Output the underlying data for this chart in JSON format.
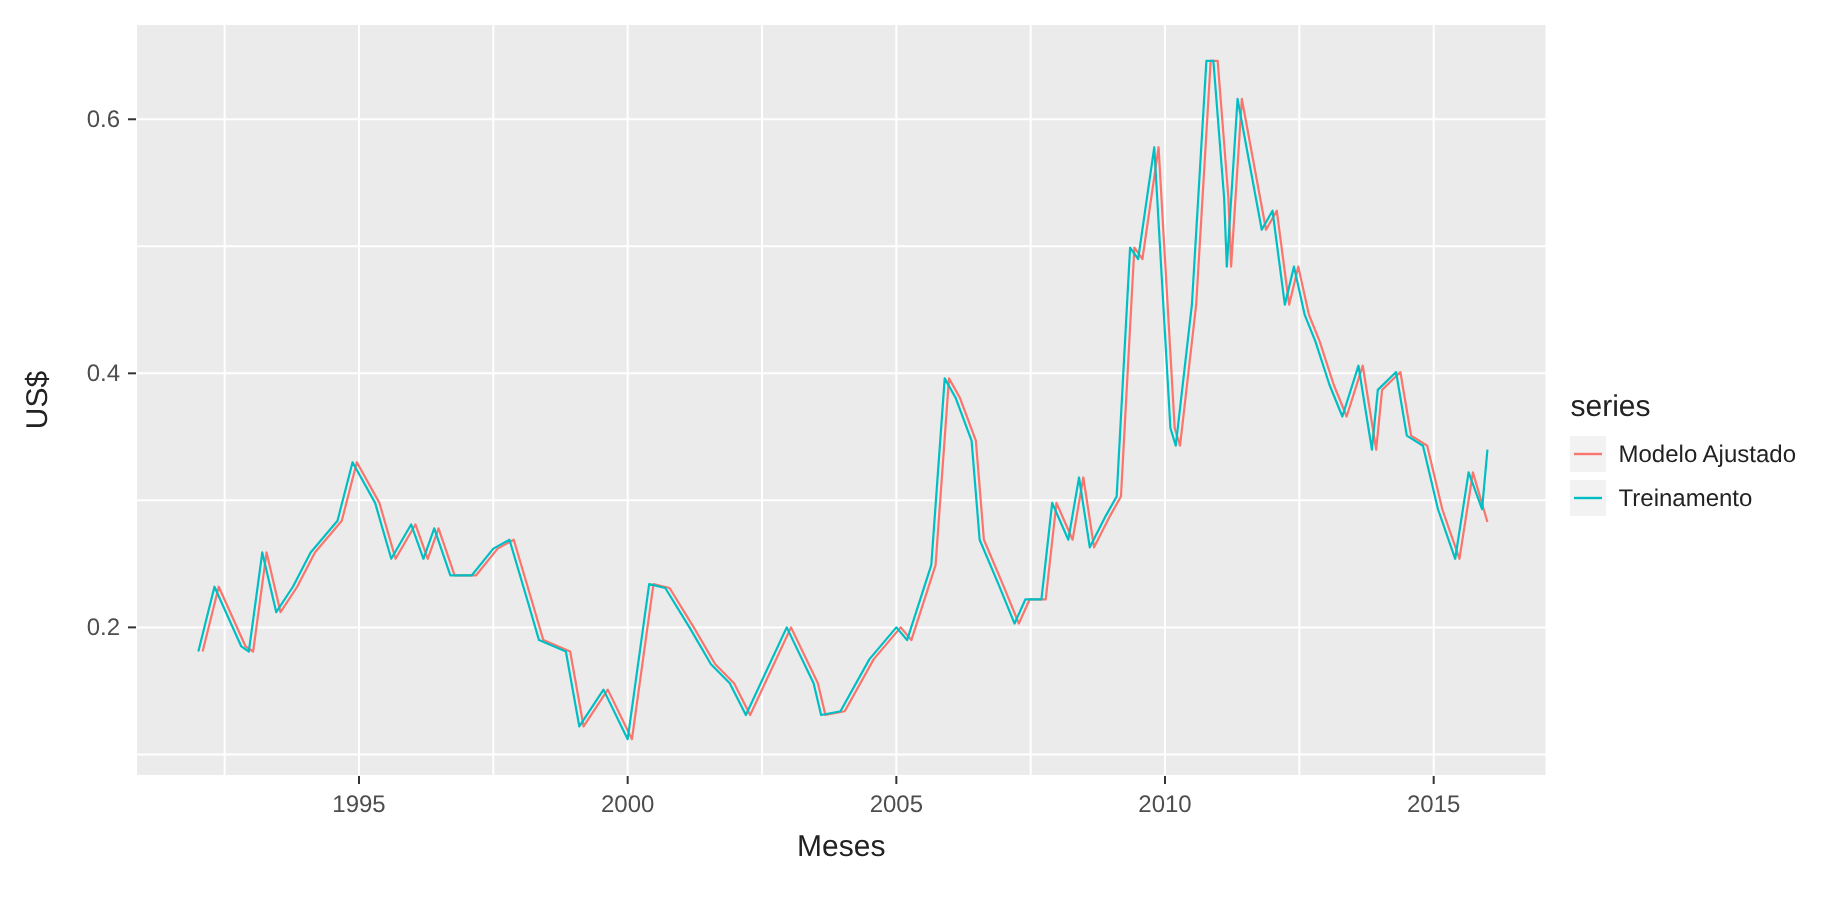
{
  "chart_data": {
    "type": "line",
    "xlabel": "Meses",
    "ylabel": "US$",
    "legend_title": "series",
    "legend": "right",
    "grid": true,
    "xlim": [
      1990.85,
      2017.1
    ],
    "xticks": [
      {
        "value": 1992.5,
        "label": null
      },
      1995,
      {
        "value": 1997.5,
        "label": null
      },
      2000,
      {
        "value": 2002.5,
        "label": null
      },
      2005,
      {
        "value": 2007.5,
        "label": null
      },
      2010,
      {
        "value": 2012.5,
        "label": null
      },
      2015
    ],
    "ylim": [
      0.083,
      0.675
    ],
    "yticks": [
      {
        "value": 0.1,
        "label": null
      },
      0.2,
      {
        "value": 0.3,
        "label": null
      },
      0.4,
      {
        "value": 0.5,
        "label": null
      },
      0.6
    ],
    "series": [
      {
        "name": "Modelo Ajustado",
        "color": "#f8766d",
        "x": [
          1992.09,
          1992.39,
          1992.89,
          1993.03,
          1993.28,
          1993.54,
          1993.85,
          1994.18,
          1994.68,
          1994.96,
          1995.38,
          1995.68,
          1996.05,
          1996.28,
          1996.48,
          1996.78,
          1997.18,
          1997.58,
          1997.88,
          1998.23,
          1998.43,
          1998.93,
          1999.18,
          1999.63,
          2000.08,
          2000.48,
          2000.78,
          2001.23,
          2001.63,
          2001.98,
          2002.28,
          2003.04,
          2003.54,
          2003.68,
          2004.04,
          2004.58,
          2005.08,
          2005.28,
          2005.73,
          2005.98,
          2006.18,
          2006.48,
          2006.63,
          2006.98,
          2007.28,
          2007.48,
          2007.78,
          2007.98,
          2008.28,
          2008.48,
          2008.68,
          2008.98,
          2009.18,
          2009.43,
          2009.58,
          2009.88,
          2010.18,
          2010.28,
          2010.58,
          2010.85,
          2010.98,
          2011.18,
          2011.23,
          2011.43,
          2011.88,
          2012.08,
          2012.31,
          2012.48,
          2012.68,
          2012.88,
          2013.14,
          2013.38,
          2013.68,
          2013.93,
          2014.04,
          2014.38,
          2014.58,
          2014.88,
          2015.16,
          2015.48,
          2015.73,
          2016.0
        ],
        "values": [
          0.181,
          0.232,
          0.185,
          0.181,
          0.259,
          0.212,
          0.232,
          0.259,
          0.284,
          0.33,
          0.298,
          0.254,
          0.281,
          0.254,
          0.278,
          0.241,
          0.241,
          0.262,
          0.269,
          0.219,
          0.19,
          0.181,
          0.122,
          0.151,
          0.112,
          0.234,
          0.231,
          0.2,
          0.171,
          0.156,
          0.131,
          0.2,
          0.156,
          0.131,
          0.134,
          0.175,
          0.2,
          0.19,
          0.249,
          0.396,
          0.381,
          0.347,
          0.269,
          0.234,
          0.203,
          0.222,
          0.222,
          0.298,
          0.269,
          0.318,
          0.263,
          0.288,
          0.303,
          0.499,
          0.49,
          0.578,
          0.357,
          0.343,
          0.454,
          0.646,
          0.646,
          0.538,
          0.484,
          0.616,
          0.513,
          0.528,
          0.454,
          0.484,
          0.446,
          0.425,
          0.391,
          0.366,
          0.406,
          0.34,
          0.387,
          0.401,
          0.351,
          0.343,
          0.293,
          0.254,
          0.322,
          0.283
        ]
      },
      {
        "name": "Treinamento",
        "color": "#00bfc4",
        "x": [
          1992.01,
          1992.31,
          1992.81,
          1992.95,
          1993.2,
          1993.46,
          1993.77,
          1994.1,
          1994.6,
          1994.88,
          1995.3,
          1995.6,
          1995.97,
          1996.2,
          1996.4,
          1996.7,
          1997.1,
          1997.5,
          1997.8,
          1998.15,
          1998.35,
          1998.85,
          1999.1,
          1999.55,
          2000.0,
          2000.4,
          2000.7,
          2001.15,
          2001.55,
          2001.9,
          2002.2,
          2002.96,
          2003.46,
          2003.6,
          2003.96,
          2004.5,
          2005.0,
          2005.2,
          2005.65,
          2005.9,
          2006.1,
          2006.4,
          2006.55,
          2006.9,
          2007.2,
          2007.4,
          2007.7,
          2007.9,
          2008.2,
          2008.4,
          2008.6,
          2008.9,
          2009.1,
          2009.35,
          2009.5,
          2009.8,
          2010.1,
          2010.2,
          2010.5,
          2010.77,
          2010.9,
          2011.1,
          2011.15,
          2011.35,
          2011.8,
          2012.0,
          2012.23,
          2012.4,
          2012.6,
          2012.8,
          2013.06,
          2013.3,
          2013.6,
          2013.85,
          2013.96,
          2014.3,
          2014.5,
          2014.8,
          2015.08,
          2015.4,
          2015.65,
          2015.9,
          2016.0
        ],
        "values": [
          0.181,
          0.232,
          0.185,
          0.181,
          0.259,
          0.212,
          0.232,
          0.259,
          0.284,
          0.33,
          0.298,
          0.254,
          0.281,
          0.254,
          0.278,
          0.241,
          0.241,
          0.262,
          0.269,
          0.219,
          0.19,
          0.181,
          0.122,
          0.151,
          0.112,
          0.234,
          0.231,
          0.2,
          0.171,
          0.156,
          0.131,
          0.2,
          0.156,
          0.131,
          0.134,
          0.175,
          0.2,
          0.19,
          0.249,
          0.396,
          0.381,
          0.347,
          0.269,
          0.234,
          0.203,
          0.222,
          0.222,
          0.298,
          0.269,
          0.318,
          0.263,
          0.288,
          0.303,
          0.499,
          0.49,
          0.578,
          0.357,
          0.343,
          0.454,
          0.646,
          0.646,
          0.538,
          0.484,
          0.616,
          0.513,
          0.528,
          0.454,
          0.484,
          0.446,
          0.425,
          0.391,
          0.366,
          0.406,
          0.34,
          0.387,
          0.401,
          0.351,
          0.343,
          0.293,
          0.254,
          0.322,
          0.293,
          0.34
        ]
      }
    ]
  }
}
